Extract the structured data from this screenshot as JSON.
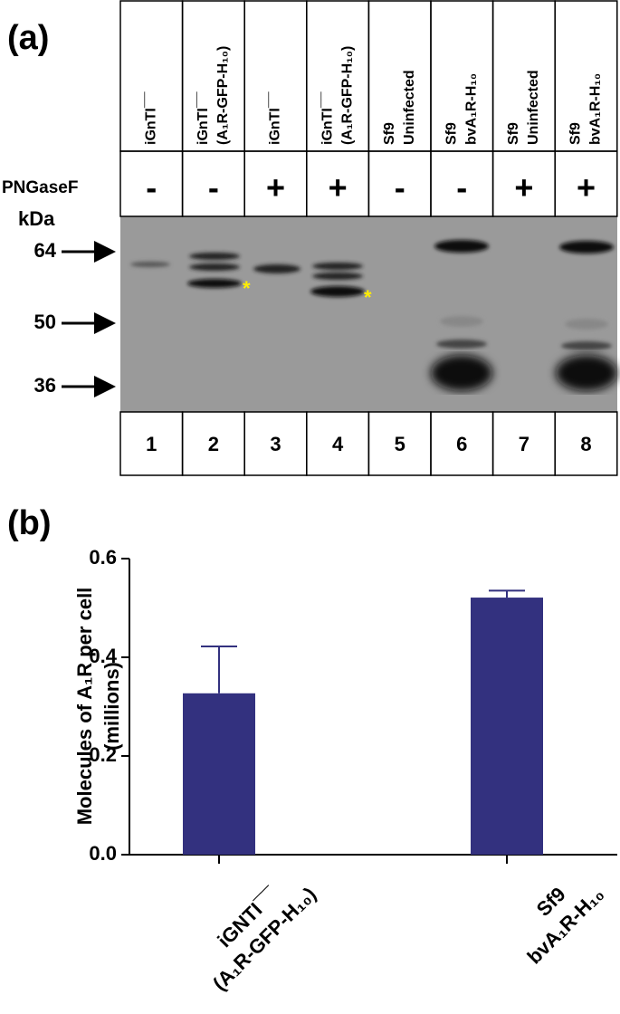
{
  "panel_a": {
    "label": "(a)",
    "treatment_label": "PNGaseF",
    "marker_unit": "kDa",
    "markers": [
      "64",
      "50",
      "36"
    ],
    "lanes": [
      {
        "sample": [
          "iGnTI¯¯"
        ],
        "treatment": "-",
        "number": "1"
      },
      {
        "sample": [
          "iGnTI¯¯",
          "(A₁R-GFP-H₁₀)"
        ],
        "treatment": "-",
        "number": "2"
      },
      {
        "sample": [
          "iGnTI¯¯"
        ],
        "treatment": "+",
        "number": "3"
      },
      {
        "sample": [
          "iGnTI¯¯",
          "(A₁R-GFP-H₁₀)"
        ],
        "treatment": "+",
        "number": "4"
      },
      {
        "sample": [
          "Sf9",
          "Uninfected"
        ],
        "treatment": "-",
        "number": "5"
      },
      {
        "sample": [
          "Sf9",
          "bvA₁R-H₁₀"
        ],
        "treatment": "-",
        "number": "6"
      },
      {
        "sample": [
          "Sf9",
          "Uninfected"
        ],
        "treatment": "+",
        "number": "7"
      },
      {
        "sample": [
          "Sf9",
          "bvA₁R-H₁₀"
        ],
        "treatment": "+",
        "number": "8"
      }
    ],
    "asterisks": [
      "*",
      "*"
    ]
  },
  "chart_data": {
    "type": "bar",
    "panel_label": "(b)",
    "ylabel": [
      "Molecules of A₁R per cell",
      "(millions)"
    ],
    "categories": [
      [
        "iGNTI¯¯",
        "(A₁R-GFP-H₁₀)"
      ],
      [
        "Sf9",
        "bvA₁R-H₁₀"
      ]
    ],
    "values": [
      0.327,
      0.521
    ],
    "errors": [
      0.095,
      0.014
    ],
    "color": "#33317f",
    "ylim": [
      0,
      0.6
    ],
    "yticks": [
      {
        "value": 0,
        "label": "0.0"
      },
      0.2,
      0.4,
      0.6
    ]
  }
}
